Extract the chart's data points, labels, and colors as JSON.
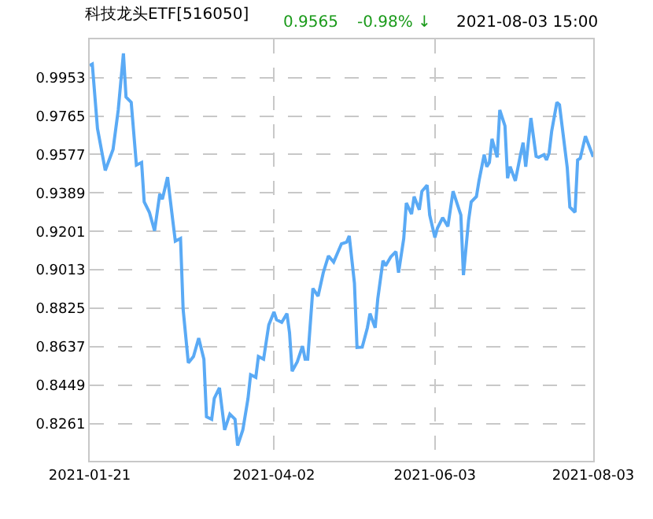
{
  "chart_data": {
    "type": "line",
    "title": "科技龙头ETF[516050]",
    "annotations": [
      "0.9565",
      "-0.98% ↓",
      "2021-08-03 15:00"
    ],
    "x": [
      "2021-01-21",
      "2021-01-22",
      "2021-01-24",
      "2021-01-27",
      "2021-01-30",
      "2021-02-01",
      "2021-02-03",
      "2021-02-04",
      "2021-02-06",
      "2021-02-08",
      "2021-02-10",
      "2021-02-11",
      "2021-02-13",
      "2021-02-15",
      "2021-02-17",
      "2021-02-18",
      "2021-02-20",
      "2021-02-22",
      "2021-02-23",
      "2021-02-25",
      "2021-02-26",
      "2021-02-28",
      "2021-03-02",
      "2021-03-04",
      "2021-03-06",
      "2021-03-07",
      "2021-03-09",
      "2021-03-10",
      "2021-03-12",
      "2021-03-14",
      "2021-03-16",
      "2021-03-18",
      "2021-03-19",
      "2021-03-21",
      "2021-03-23",
      "2021-03-24",
      "2021-03-26",
      "2021-03-27",
      "2021-03-29",
      "2021-03-31",
      "2021-04-02",
      "2021-04-03",
      "2021-04-05",
      "2021-04-07",
      "2021-04-08",
      "2021-04-09",
      "2021-04-11",
      "2021-04-13",
      "2021-04-14",
      "2021-04-15",
      "2021-04-17",
      "2021-04-19",
      "2021-04-21",
      "2021-04-23",
      "2021-04-25",
      "2021-04-28",
      "2021-04-30",
      "2021-05-01",
      "2021-05-03",
      "2021-05-04",
      "2021-05-06",
      "2021-05-08",
      "2021-05-09",
      "2021-05-11",
      "2021-05-12",
      "2021-05-14",
      "2021-05-15",
      "2021-05-17",
      "2021-05-19",
      "2021-05-20",
      "2021-05-22",
      "2021-05-23",
      "2021-05-25",
      "2021-05-26",
      "2021-05-28",
      "2021-05-29",
      "2021-05-31",
      "2021-06-01",
      "2021-06-03",
      "2021-06-04",
      "2021-06-06",
      "2021-06-08",
      "2021-06-10",
      "2021-06-13",
      "2021-06-14",
      "2021-06-16",
      "2021-06-17",
      "2021-06-19",
      "2021-06-20",
      "2021-06-22",
      "2021-06-23",
      "2021-06-24",
      "2021-06-25",
      "2021-06-27",
      "2021-06-28",
      "2021-06-30",
      "2021-07-01",
      "2021-07-02",
      "2021-07-04",
      "2021-07-06",
      "2021-07-07",
      "2021-07-08",
      "2021-07-10",
      "2021-07-12",
      "2021-07-13",
      "2021-07-15",
      "2021-07-16",
      "2021-07-17",
      "2021-07-18",
      "2021-07-20",
      "2021-07-21",
      "2021-07-22",
      "2021-07-24",
      "2021-07-25",
      "2021-07-27",
      "2021-07-28",
      "2021-07-29",
      "2021-07-31",
      "2021-08-03"
    ],
    "series": [
      {
        "color": "#5aaaf5",
        "values": [
          1.0012,
          1.0019,
          0.9704,
          0.9499,
          0.9602,
          0.9794,
          1.0071,
          0.9858,
          0.9832,
          0.9525,
          0.9538,
          0.9345,
          0.9294,
          0.9204,
          0.9384,
          0.9358,
          0.9466,
          0.9256,
          0.9153,
          0.9166,
          0.882,
          0.8558,
          0.8589,
          0.8679,
          0.8576,
          0.8294,
          0.8282,
          0.8384,
          0.8436,
          0.823,
          0.8307,
          0.8282,
          0.8154,
          0.823,
          0.8384,
          0.85,
          0.8487,
          0.8589,
          0.8576,
          0.8743,
          0.8807,
          0.8769,
          0.8756,
          0.8799,
          0.8705,
          0.8517,
          0.8564,
          0.864,
          0.8576,
          0.8576,
          0.8922,
          0.8884,
          0.8999,
          0.9081,
          0.9051,
          0.914,
          0.9148,
          0.9179,
          0.8948,
          0.8633,
          0.8635,
          0.873,
          0.8799,
          0.873,
          0.8871,
          0.9058,
          0.9033,
          0.9076,
          0.9102,
          0.8999,
          0.9166,
          0.934,
          0.9286,
          0.9371,
          0.9307,
          0.9397,
          0.9427,
          0.9281,
          0.9171,
          0.9217,
          0.9268,
          0.9225,
          0.9397,
          0.9281,
          0.8987,
          0.9256,
          0.9345,
          0.9371,
          0.9448,
          0.9576,
          0.9517,
          0.9538,
          0.9653,
          0.9563,
          0.9794,
          0.9717,
          0.9461,
          0.9517,
          0.9448,
          0.9576,
          0.9635,
          0.9517,
          0.9755,
          0.9568,
          0.9563,
          0.9576,
          0.955,
          0.9584,
          0.9691,
          0.9832,
          0.982,
          0.9717,
          0.9512,
          0.932,
          0.9294,
          0.955,
          0.9558,
          0.9666,
          0.9565
        ]
      }
    ],
    "xlim": [
      "2021-01-21",
      "2021-08-03"
    ],
    "xticks": [
      {
        "value": "2021-01-21",
        "label": "2021-01-21"
      },
      {
        "value": "2021-04-02",
        "label": "2021-04-02"
      },
      {
        "value": "2021-06-03",
        "label": "2021-06-03"
      },
      {
        "value": "2021-08-03",
        "label": "2021-08-03"
      }
    ],
    "ylim": [
      0.8079,
      1.014
    ],
    "yticks": [
      0.9953,
      0.9765,
      0.9577,
      0.9389,
      0.9201,
      0.9013,
      0.8825,
      0.8637,
      0.8449,
      0.8261
    ],
    "grid": true,
    "marker": "none",
    "line_style": "solid"
  }
}
